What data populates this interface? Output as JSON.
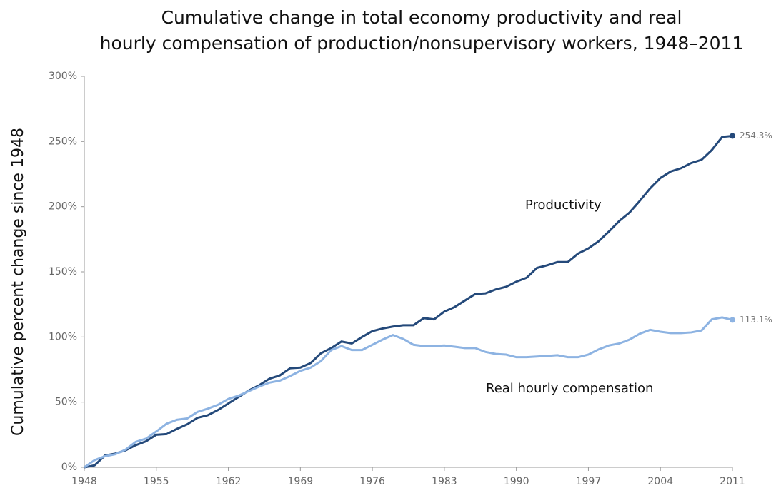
{
  "chart_data": {
    "type": "line",
    "title": [
      "Cumulative change in total economy productivity and real",
      "hourly compensation of production/nonsupervisory workers, 1948–2011"
    ],
    "y_label": "Cumulative percent change since 1948",
    "x": [
      1948,
      1949,
      1950,
      1951,
      1952,
      1953,
      1954,
      1955,
      1956,
      1957,
      1958,
      1959,
      1960,
      1961,
      1962,
      1963,
      1964,
      1965,
      1966,
      1967,
      1968,
      1969,
      1970,
      1971,
      1972,
      1973,
      1974,
      1975,
      1976,
      1977,
      1978,
      1979,
      1980,
      1981,
      1982,
      1983,
      1984,
      1985,
      1986,
      1987,
      1988,
      1989,
      1990,
      1991,
      1992,
      1993,
      1994,
      1995,
      1996,
      1997,
      1998,
      1999,
      2000,
      2001,
      2002,
      2003,
      2004,
      2005,
      2006,
      2007,
      2008,
      2009,
      2010,
      2011
    ],
    "series": [
      {
        "name": "Productivity",
        "color": "#24497a",
        "values": [
          0,
          1.5,
          9,
          10.5,
          13,
          17,
          20,
          25,
          25.5,
          29.5,
          33,
          38,
          40,
          44,
          49,
          54,
          59,
          63,
          68,
          70.5,
          76,
          76.5,
          80,
          87.5,
          91.5,
          96.5,
          95,
          100,
          104.5,
          106.5,
          108,
          109,
          109,
          114.5,
          113.5,
          119.5,
          123,
          128,
          133,
          133.5,
          136.5,
          138.5,
          142.5,
          145.5,
          153,
          155,
          157.5,
          157.5,
          164,
          168,
          173.5,
          181,
          189,
          195.5,
          204.5,
          214,
          222,
          227,
          229.5,
          233.5,
          236,
          243.5,
          253.5,
          254.3
        ],
        "value_labels": [
          null,
          null,
          null,
          null,
          null,
          null,
          null,
          null,
          null,
          null,
          null,
          null,
          null,
          null,
          null,
          null,
          null,
          null,
          null,
          null,
          null,
          null,
          null,
          null,
          null,
          null,
          null,
          null,
          null,
          null,
          null,
          null,
          null,
          null,
          null,
          null,
          null,
          null,
          null,
          null,
          null,
          null,
          null,
          null,
          null,
          null,
          null,
          null,
          null,
          null,
          null,
          null,
          null,
          null,
          null,
          null,
          null,
          null,
          null,
          null,
          null,
          null,
          null,
          "254.3%"
        ]
      },
      {
        "name": "Real hourly compensation",
        "color": "#8db3e2",
        "values": [
          0,
          5.5,
          8.5,
          10,
          13.5,
          19.5,
          22,
          27.5,
          33.5,
          36.5,
          37.5,
          42.5,
          45,
          48,
          52.5,
          55,
          58.5,
          62,
          65,
          66.5,
          70,
          74,
          76.5,
          81.5,
          90,
          93,
          90,
          90,
          94,
          98,
          101.5,
          98.5,
          94,
          93,
          93,
          93.5,
          92.5,
          91.5,
          91.5,
          88.5,
          87,
          86.5,
          84.5,
          84.5,
          85,
          85.5,
          86,
          84.5,
          84.5,
          86.5,
          90.5,
          93.5,
          95,
          98,
          102.5,
          105.5,
          104,
          103,
          103,
          103.5,
          105,
          113.5,
          115,
          113.1
        ],
        "value_labels": [
          null,
          null,
          null,
          null,
          null,
          null,
          null,
          null,
          null,
          null,
          null,
          null,
          null,
          null,
          null,
          null,
          null,
          null,
          null,
          null,
          null,
          null,
          null,
          null,
          null,
          null,
          null,
          null,
          null,
          null,
          null,
          null,
          null,
          null,
          null,
          null,
          null,
          null,
          null,
          null,
          null,
          null,
          null,
          null,
          null,
          null,
          null,
          null,
          null,
          null,
          null,
          null,
          null,
          null,
          null,
          null,
          null,
          null,
          null,
          null,
          null,
          null,
          null,
          "113.1%"
        ]
      }
    ],
    "xlim": [
      1948,
      2011
    ],
    "xticks": [
      1948,
      1955,
      1962,
      1969,
      1976,
      1983,
      1990,
      1997,
      2004,
      2011
    ],
    "ylim": [
      0,
      300
    ],
    "yticks": [
      {
        "value": 0,
        "label": "0%"
      },
      {
        "value": 50,
        "label": "50%"
      },
      {
        "value": 100,
        "label": "100%"
      },
      {
        "value": 150,
        "label": "150%"
      },
      {
        "value": 200,
        "label": "200%"
      },
      {
        "value": 250,
        "label": "250%"
      },
      {
        "value": 300,
        "label": "300%"
      }
    ],
    "grid": false
  }
}
